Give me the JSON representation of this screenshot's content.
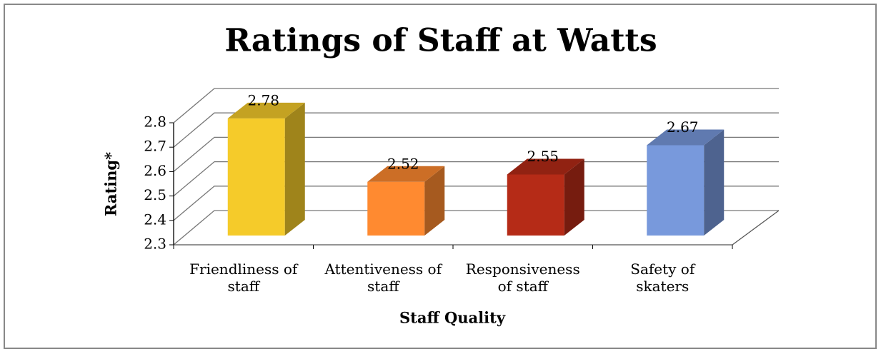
{
  "chart_data": {
    "type": "bar3d",
    "title": "Ratings of Staff at Watts",
    "categories": [
      "Friendliness of staff",
      "Attentiveness of staff",
      "Responsiveness of staff",
      "Safety of skaters"
    ],
    "values": [
      2.78,
      2.52,
      2.55,
      2.67
    ],
    "colors": [
      "#f5cb2a",
      "#ff8a30",
      "#b52b17",
      "#7899dc"
    ],
    "x_label": "Staff Quality",
    "y_label": "Rating*",
    "ylim": [
      2.3,
      2.8
    ],
    "yticks": [
      2.3,
      2.4,
      2.5,
      2.6,
      2.7,
      2.8
    ],
    "grid": true
  }
}
